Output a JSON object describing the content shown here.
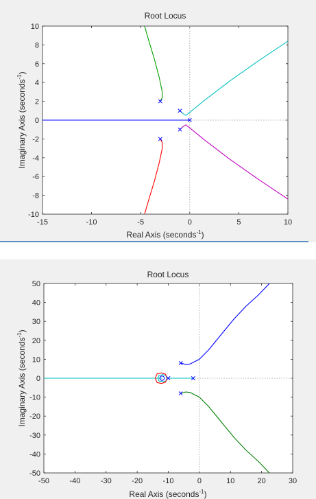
{
  "chart_data": [
    {
      "type": "line",
      "title": "Root Locus",
      "xlabel": "Real Axis (seconds",
      "ylabel": "Imaginary Axis (seconds",
      "label_exponent": "-1",
      "label_close": ")",
      "xlim": [
        -15,
        10
      ],
      "ylim": [
        -10,
        10
      ],
      "xticks": [
        -15,
        -10,
        -5,
        0,
        5,
        10
      ],
      "yticks": [
        -10,
        -8,
        -6,
        -4,
        -2,
        0,
        2,
        4,
        6,
        8,
        10
      ],
      "grid": false,
      "axis_lines": {
        "x": 0,
        "y": 0
      },
      "poles": [
        {
          "x": -3,
          "y": 2
        },
        {
          "x": -3,
          "y": -2
        },
        {
          "x": -1,
          "y": 1
        },
        {
          "x": -1,
          "y": -1
        },
        {
          "x": 0,
          "y": 0
        }
      ],
      "zeros": [],
      "series": [
        {
          "color": "#0000ff",
          "points": [
            [
              -15,
              0
            ],
            [
              0,
              0
            ]
          ]
        },
        {
          "color": "#00a000",
          "points": [
            [
              -3,
              2
            ],
            [
              -2.8,
              2.4
            ],
            [
              -2.8,
              3
            ],
            [
              -3.1,
              4.5
            ],
            [
              -3.6,
              6.5
            ],
            [
              -4.1,
              8.2
            ],
            [
              -4.6,
              10
            ]
          ]
        },
        {
          "color": "#ff0000",
          "points": [
            [
              -3,
              -2
            ],
            [
              -2.8,
              -2.4
            ],
            [
              -2.8,
              -3
            ],
            [
              -3.1,
              -4.5
            ],
            [
              -3.6,
              -6.5
            ],
            [
              -4.1,
              -8.2
            ],
            [
              -4.6,
              -10
            ]
          ]
        },
        {
          "color": "#00bfbf",
          "points": [
            [
              -1,
              1
            ],
            [
              -0.7,
              0.7
            ],
            [
              -0.4,
              0.5
            ],
            [
              0.2,
              1.0
            ],
            [
              1.5,
              2.1
            ],
            [
              4,
              4.1
            ],
            [
              7,
              6.3
            ],
            [
              10,
              8.4
            ]
          ]
        },
        {
          "color": "#bf00bf",
          "points": [
            [
              -1,
              -1
            ],
            [
              -0.7,
              -0.7
            ],
            [
              -0.4,
              -0.5
            ],
            [
              0.2,
              -1.0
            ],
            [
              1.5,
              -2.1
            ],
            [
              4,
              -4.1
            ],
            [
              7,
              -6.3
            ],
            [
              10,
              -8.4
            ]
          ]
        }
      ]
    },
    {
      "type": "line",
      "title": "Root Locus",
      "xlabel": "Real Axis (seconds",
      "ylabel": "Imaginary Axis (seconds",
      "label_exponent": "-1",
      "label_close": ")",
      "xlim": [
        -50,
        30
      ],
      "ylim": [
        -50,
        50
      ],
      "xticks": [
        -50,
        -40,
        -30,
        -20,
        -10,
        0,
        10,
        20,
        30
      ],
      "yticks": [
        -50,
        -40,
        -30,
        -20,
        -10,
        0,
        10,
        20,
        30,
        40,
        50
      ],
      "grid": false,
      "axis_lines": {
        "x": 0,
        "y": 0
      },
      "poles": [
        {
          "x": -6,
          "y": 8
        },
        {
          "x": -6,
          "y": -8
        },
        {
          "x": -10,
          "y": 0
        },
        {
          "x": -2,
          "y": 0
        }
      ],
      "zeros": [
        {
          "x": -12,
          "y": 0
        }
      ],
      "series": [
        {
          "color": "#00bfbf",
          "points": [
            [
              -50,
              0
            ],
            [
              -12,
              0
            ]
          ]
        },
        {
          "color": "#00bfbf",
          "points": [
            [
              -10,
              0
            ],
            [
              -2,
              0
            ]
          ]
        },
        {
          "color": "#00bfbf",
          "points": [
            [
              -10.4,
              0.1
            ],
            [
              -10.8,
              1.4
            ],
            [
              -11.7,
              1.9
            ],
            [
              -13.0,
              1.5
            ],
            [
              -13.3,
              0
            ],
            [
              -13.0,
              -1.5
            ],
            [
              -11.7,
              -1.9
            ],
            [
              -10.8,
              -1.4
            ],
            [
              -10.4,
              -0.1
            ]
          ]
        },
        {
          "color": "#ff0000",
          "points": [
            [
              -10.4,
              0.2
            ],
            [
              -10.9,
              2.1
            ],
            [
              -12.2,
              2.8
            ],
            [
              -13.6,
              2.3
            ],
            [
              -14.2,
              0
            ],
            [
              -13.6,
              -2.3
            ],
            [
              -12.2,
              -2.8
            ],
            [
              -10.9,
              -2.1
            ],
            [
              -10.4,
              -0.2
            ]
          ]
        },
        {
          "color": "#0000ff",
          "points": [
            [
              -6,
              8
            ],
            [
              -4.5,
              7.3
            ],
            [
              -3,
              7.5
            ],
            [
              0,
              10
            ],
            [
              3,
              15
            ],
            [
              7,
              23
            ],
            [
              11,
              31
            ],
            [
              15,
              38
            ],
            [
              19,
              44
            ],
            [
              22.5,
              50
            ]
          ]
        },
        {
          "color": "#008000",
          "points": [
            [
              -6,
              -8
            ],
            [
              -4.5,
              -7.3
            ],
            [
              -3,
              -7.5
            ],
            [
              0,
              -10
            ],
            [
              3,
              -15
            ],
            [
              7,
              -23
            ],
            [
              11,
              -31
            ],
            [
              15,
              -38
            ],
            [
              19,
              -44
            ],
            [
              22.5,
              -50
            ]
          ]
        }
      ]
    }
  ]
}
